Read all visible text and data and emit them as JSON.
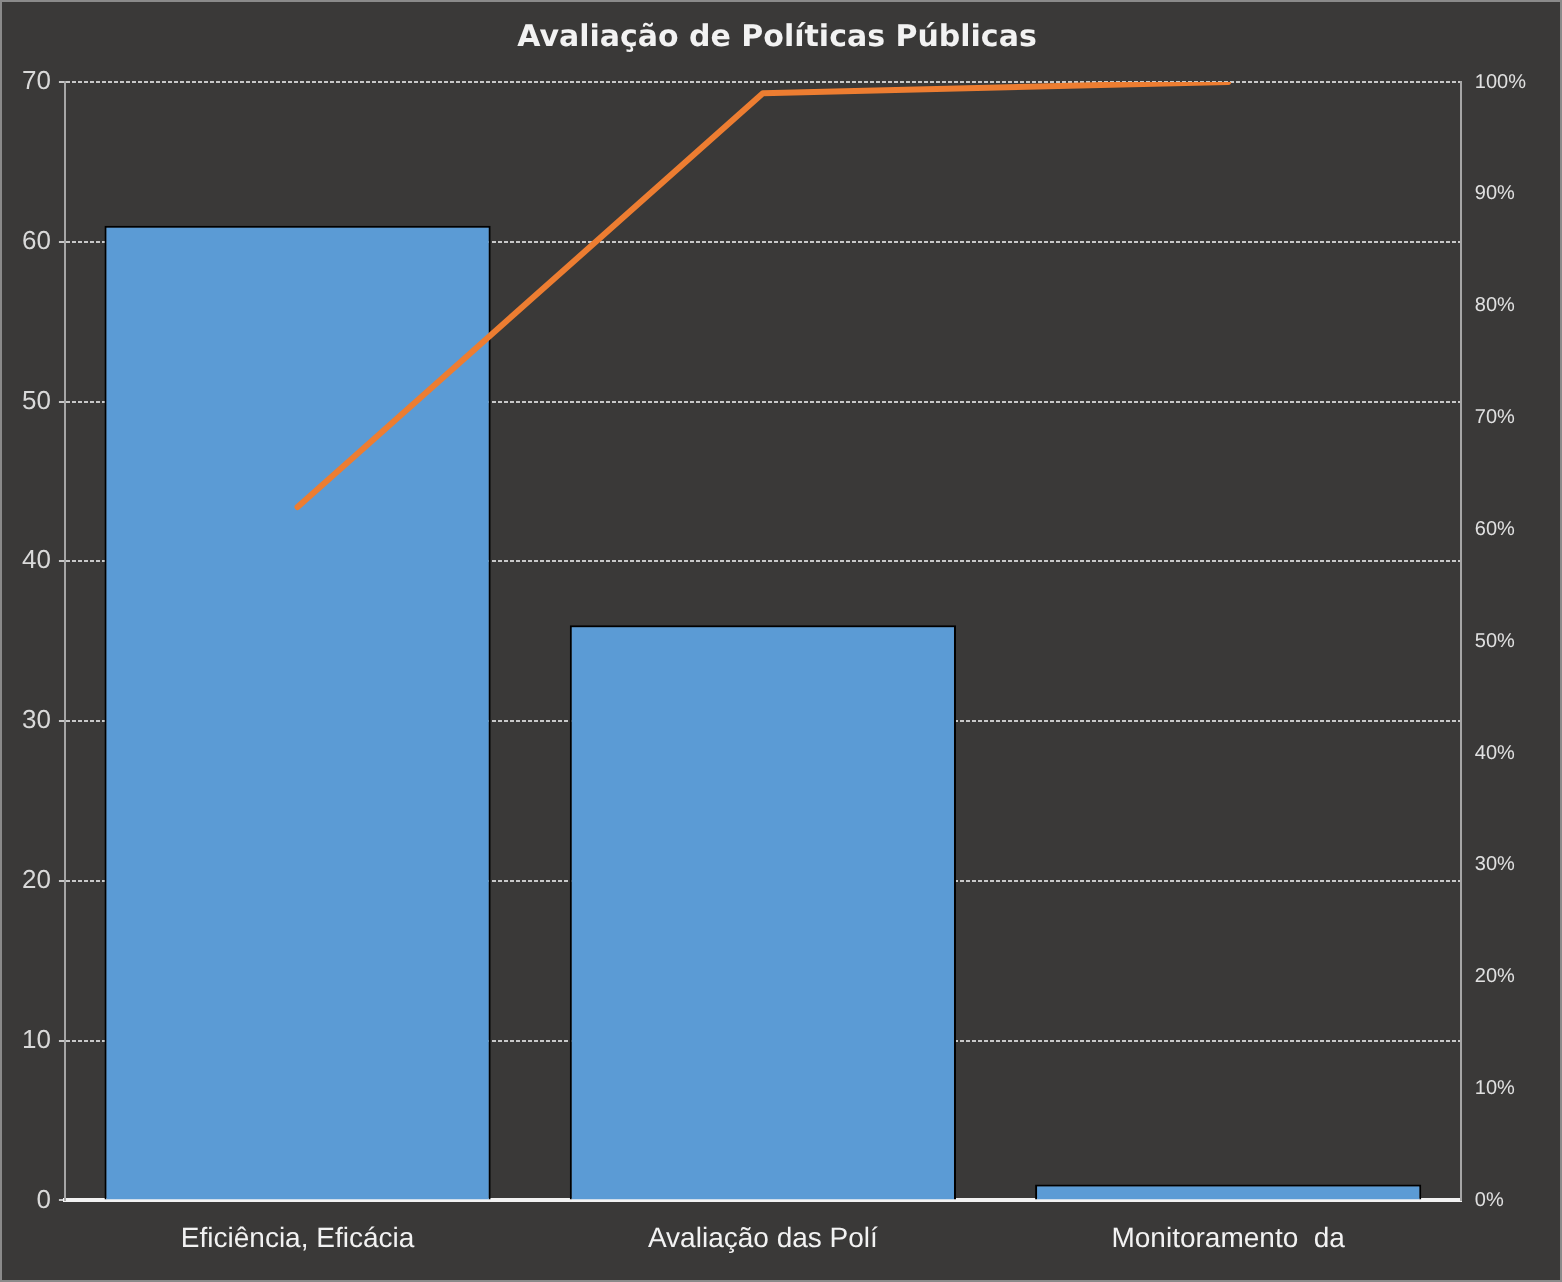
{
  "chart_data": {
    "type": "bar",
    "title": "Avaliação de Políticas Públicas",
    "categories": [
      "Eficiência, Eficácia",
      "Avaliação das Polí",
      "Monitoramento  da"
    ],
    "series": [
      {
        "type": "bar",
        "color": "#5b9bd5",
        "values": [
          61,
          36,
          1
        ]
      },
      {
        "type": "line",
        "color": "#ed7d31",
        "values": [
          62,
          99,
          100
        ],
        "axis": "y2"
      }
    ],
    "ylim": [
      0,
      70
    ],
    "yticks": [
      0,
      10,
      20,
      30,
      40,
      50,
      60,
      70
    ],
    "y2lim": [
      0,
      100
    ],
    "y2ticks": [
      {
        "value": 0,
        "label": "0%"
      },
      {
        "value": 10,
        "label": "10%"
      },
      {
        "value": 20,
        "label": "20%"
      },
      {
        "value": 30,
        "label": "30%"
      },
      {
        "value": 40,
        "label": "40%"
      },
      {
        "value": 50,
        "label": "50%"
      },
      {
        "value": 60,
        "label": "60%"
      },
      {
        "value": 70,
        "label": "70%"
      },
      {
        "value": 80,
        "label": "80%"
      },
      {
        "value": 90,
        "label": "90%"
      },
      {
        "value": 100,
        "label": "100%"
      }
    ],
    "grid": "y",
    "legend": false
  }
}
